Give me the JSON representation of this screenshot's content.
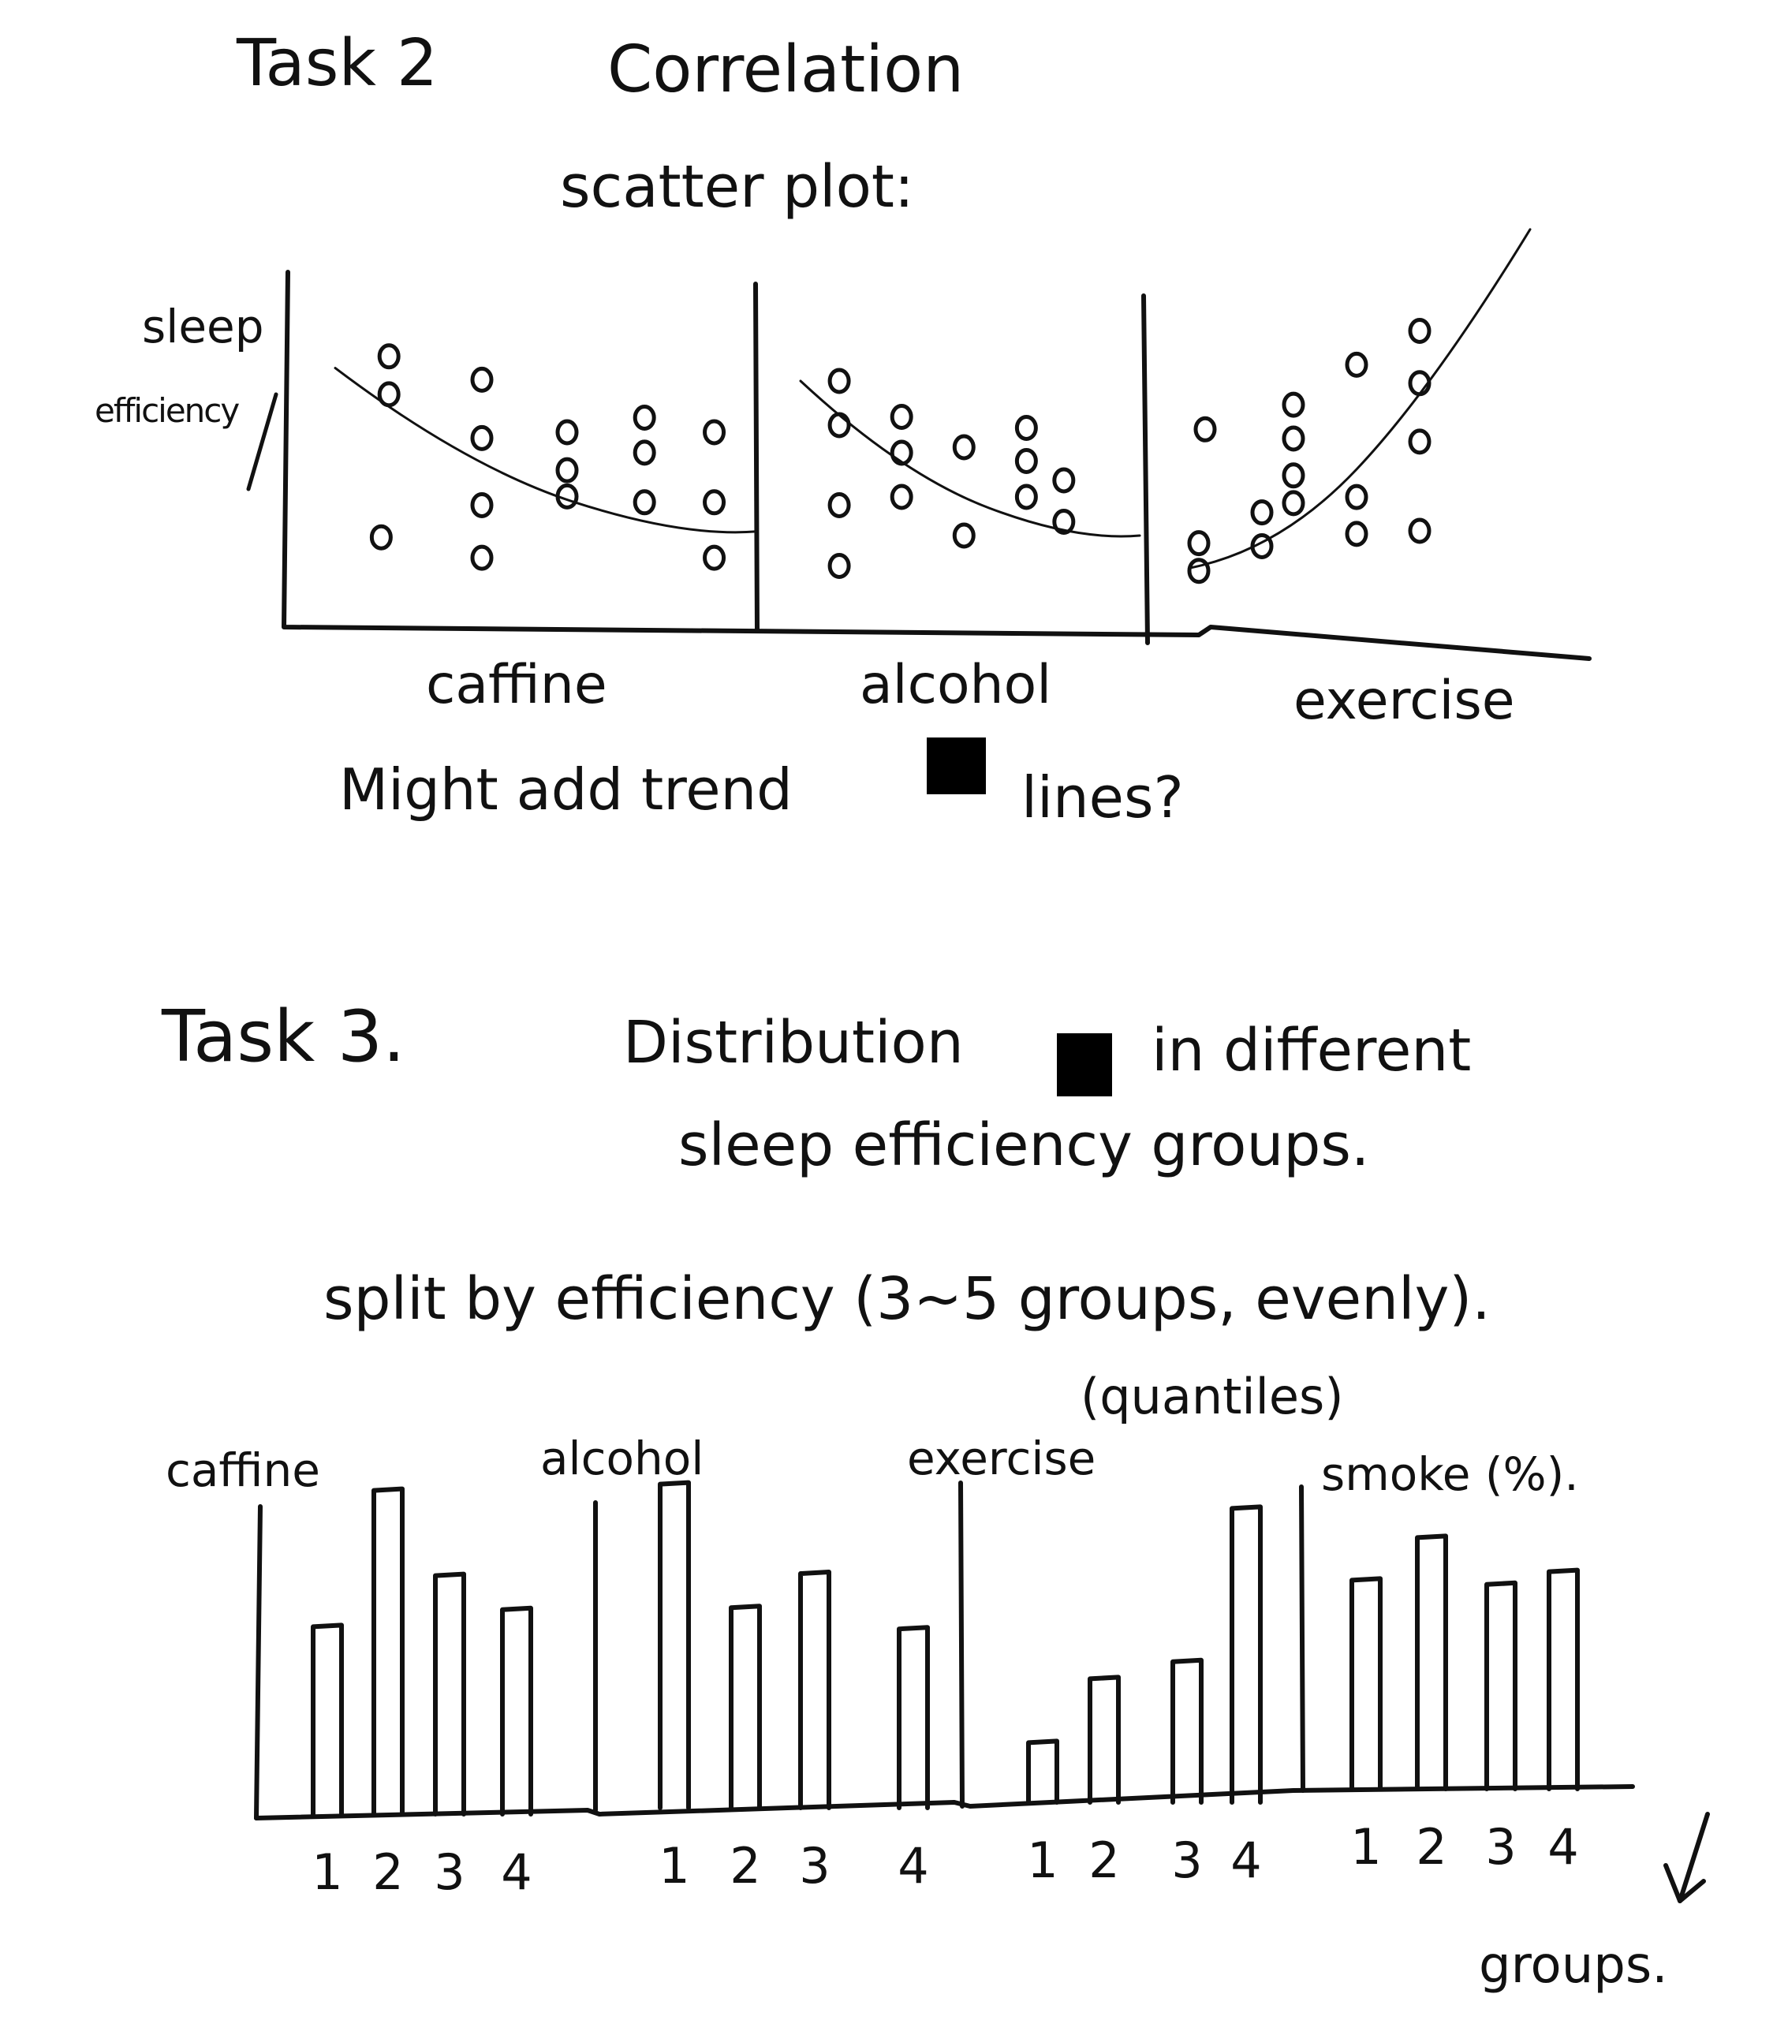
{
  "task2": {
    "heading": "Task 2",
    "title": "Correlation",
    "subtitle": "scatter plot:",
    "ylabel_line1": "sleep",
    "ylabel_line2": "efficiency",
    "note_start": "Might add trend",
    "note_end": "lines?"
  },
  "task3": {
    "heading": "Task 3.",
    "title_start": "Distribution",
    "title_end": "in different",
    "title_line2": "sleep efficiency groups.",
    "split_note": "split by efficiency (3~5 groups, evenly).",
    "quantiles_note": "(quantiles)",
    "groups_label": "groups."
  },
  "chart_data": [
    {
      "type": "scatter",
      "xlabel": "caffine",
      "ylabel": "sleep efficiency",
      "trend": "decreasing",
      "points": [
        {
          "x": 1,
          "y": 8.6
        },
        {
          "x": 1,
          "y": 7.3
        },
        {
          "x": 0.9,
          "y": 2.4
        },
        {
          "x": 2.2,
          "y": 7.8
        },
        {
          "x": 2.2,
          "y": 5.8
        },
        {
          "x": 2.2,
          "y": 3.5
        },
        {
          "x": 2.2,
          "y": 1.7
        },
        {
          "x": 3.3,
          "y": 6.0
        },
        {
          "x": 3.3,
          "y": 4.7
        },
        {
          "x": 3.3,
          "y": 3.8
        },
        {
          "x": 4.3,
          "y": 6.5
        },
        {
          "x": 4.3,
          "y": 5.3
        },
        {
          "x": 4.3,
          "y": 3.6
        },
        {
          "x": 5.2,
          "y": 6.0
        },
        {
          "x": 5.2,
          "y": 3.6
        },
        {
          "x": 5.2,
          "y": 1.7
        }
      ]
    },
    {
      "type": "scatter",
      "xlabel": "alcohol",
      "ylabel": "sleep efficiency",
      "trend": "decreasing",
      "points": [
        {
          "x": 1,
          "y": 8.2
        },
        {
          "x": 1,
          "y": 6.6
        },
        {
          "x": 1,
          "y": 3.7
        },
        {
          "x": 1,
          "y": 1.5
        },
        {
          "x": 2,
          "y": 6.9
        },
        {
          "x": 2,
          "y": 5.6
        },
        {
          "x": 2,
          "y": 4.0
        },
        {
          "x": 3,
          "y": 5.8
        },
        {
          "x": 3,
          "y": 2.6
        },
        {
          "x": 4,
          "y": 6.5
        },
        {
          "x": 4,
          "y": 5.3
        },
        {
          "x": 4,
          "y": 4.0
        },
        {
          "x": 4.6,
          "y": 4.6
        },
        {
          "x": 4.6,
          "y": 3.1
        }
      ]
    },
    {
      "type": "scatter",
      "xlabel": "exercise",
      "ylabel": "sleep efficiency",
      "trend": "increasing",
      "points": [
        {
          "x": 0.5,
          "y": 2.6
        },
        {
          "x": 0.5,
          "y": 1.7
        },
        {
          "x": 0.6,
          "y": 6.3
        },
        {
          "x": 1.5,
          "y": 3.6
        },
        {
          "x": 1.5,
          "y": 2.5
        },
        {
          "x": 2.0,
          "y": 7.1
        },
        {
          "x": 2.0,
          "y": 6.0
        },
        {
          "x": 2.0,
          "y": 4.8
        },
        {
          "x": 2.0,
          "y": 3.9
        },
        {
          "x": 3.0,
          "y": 8.4
        },
        {
          "x": 3.0,
          "y": 4.1
        },
        {
          "x": 3.0,
          "y": 2.9
        },
        {
          "x": 4.0,
          "y": 9.5
        },
        {
          "x": 4.0,
          "y": 7.8
        },
        {
          "x": 4.0,
          "y": 5.9
        },
        {
          "x": 4.0,
          "y": 3.0
        }
      ]
    },
    {
      "type": "bar",
      "title": "caffine",
      "categories": [
        "1",
        "2",
        "3",
        "4"
      ],
      "values": [
        4.4,
        7.6,
        5.6,
        4.8
      ],
      "ylim": [
        0,
        10
      ],
      "xlabel": "groups."
    },
    {
      "type": "bar",
      "title": "alcohol",
      "categories": [
        "1",
        "2",
        "3",
        "4"
      ],
      "values": [
        7.6,
        4.7,
        5.5,
        4.2
      ],
      "ylim": [
        0,
        10
      ],
      "xlabel": "groups."
    },
    {
      "type": "bar",
      "title": "exercise",
      "categories": [
        "1",
        "2",
        "3",
        "4"
      ],
      "values": [
        1.4,
        2.9,
        3.3,
        6.9
      ],
      "ylim": [
        0,
        10
      ],
      "xlabel": "groups."
    },
    {
      "type": "bar",
      "title": "smoke (%).",
      "categories": [
        "1",
        "2",
        "3",
        "4"
      ],
      "values": [
        4.9,
        5.9,
        4.8,
        5.1
      ],
      "ylim": [
        0,
        10
      ],
      "xlabel": "groups."
    }
  ]
}
